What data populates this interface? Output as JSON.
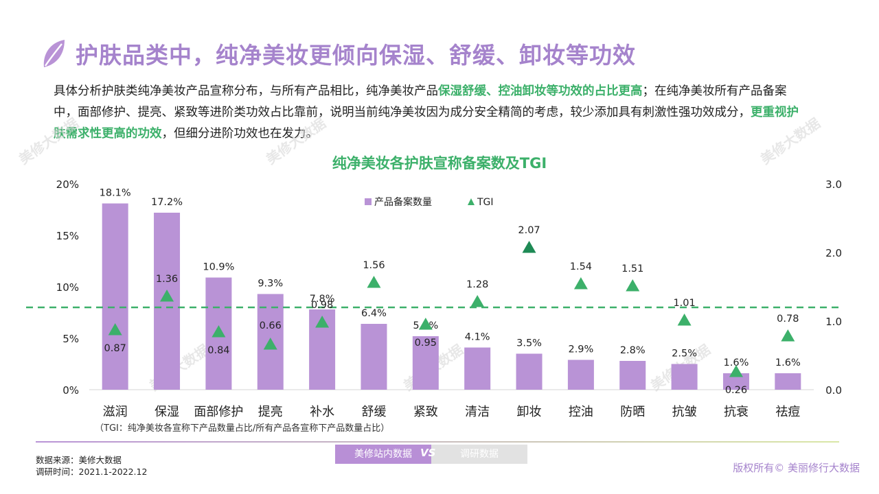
{
  "header": {
    "title": "护肤品类中，纯净美妆更倾向保湿、舒缓、卸妆等功效"
  },
  "intro": {
    "p1": "具体分析护肤类纯净美妆产品宣称分布，与所有产品相比，纯净美妆产品",
    "h1": "保湿舒缓、控油卸妆等功效的占比更高",
    "p2": "；在纯净美妆所有产品备案中，面部修护、提亮、紧致等进阶类功效占比靠前，说明当前纯净美妆因为成分安全精简的考虑，较少添加具有刺激性强功效成分，",
    "h2": "更重视护肤需求性更高的功效",
    "p3": "，但细分进阶功效也在发力。"
  },
  "chart_data": {
    "type": "bar",
    "title": "纯净美妆各护肤宣称备案数及TGI",
    "categories": [
      "滋润",
      "保湿",
      "面部修护",
      "提亮",
      "补水",
      "舒缓",
      "紧致",
      "清洁",
      "卸妆",
      "控油",
      "防晒",
      "抗皱",
      "抗衰",
      "祛痘"
    ],
    "series": [
      {
        "name": "产品备案数量",
        "type": "bar",
        "axis": "left",
        "values": [
          18.1,
          17.2,
          10.9,
          9.3,
          7.8,
          6.4,
          5.2,
          4.1,
          3.5,
          2.9,
          2.8,
          2.5,
          1.6,
          1.6
        ],
        "labels": [
          "18.1%",
          "17.2%",
          "10.9%",
          "9.3%",
          "7.8%",
          "6.4%",
          "5.2%",
          "4.1%",
          "3.5%",
          "2.9%",
          "2.8%",
          "2.5%",
          "1.6%",
          "1.6%"
        ],
        "color": "#b993d6"
      },
      {
        "name": "TGI",
        "type": "scatter",
        "axis": "right",
        "values": [
          0.87,
          1.36,
          0.84,
          0.66,
          0.98,
          1.56,
          0.95,
          1.28,
          2.07,
          1.54,
          1.51,
          1.01,
          0.26,
          0.78
        ],
        "labels": [
          "0.87",
          "1.36",
          "0.84",
          "0.66",
          "0.98",
          "1.56",
          "0.95",
          "1.28",
          "2.07",
          "1.54",
          "1.51",
          "1.01",
          "0.26",
          "0.78"
        ],
        "color": "#3cb06a",
        "highlight_color": "#1e8a55"
      }
    ],
    "y_left": {
      "min": 0,
      "max": 20,
      "ticks": [
        "0%",
        "5%",
        "10%",
        "15%",
        "20%"
      ]
    },
    "y_right": {
      "min": 0,
      "max": 3.0,
      "ticks": [
        "0.0",
        "1.0",
        "2.0",
        "3.0"
      ]
    },
    "reference_line": {
      "axis": "right",
      "value": 1.2,
      "style": "dashed",
      "color": "#3cb06a"
    },
    "legend": {
      "position": "top-center"
    },
    "grid": false
  },
  "notes": {
    "tgi": "（TGI：纯净美妆各宣称下产品数量占比/所有产品各宣称下产品数量占比）"
  },
  "footer": {
    "source": "数据来源：美修大数据",
    "period": "调研时间：2021.1-2022.12",
    "tag_left": "美修站内数据",
    "tag_vs": "VS",
    "tag_right": "调研数据",
    "copyright": "版权所有© 美丽修行大数据",
    "watermark": "美修大数据"
  },
  "colors": {
    "accent": "#a583cc",
    "highlight": "#3cb06a"
  }
}
